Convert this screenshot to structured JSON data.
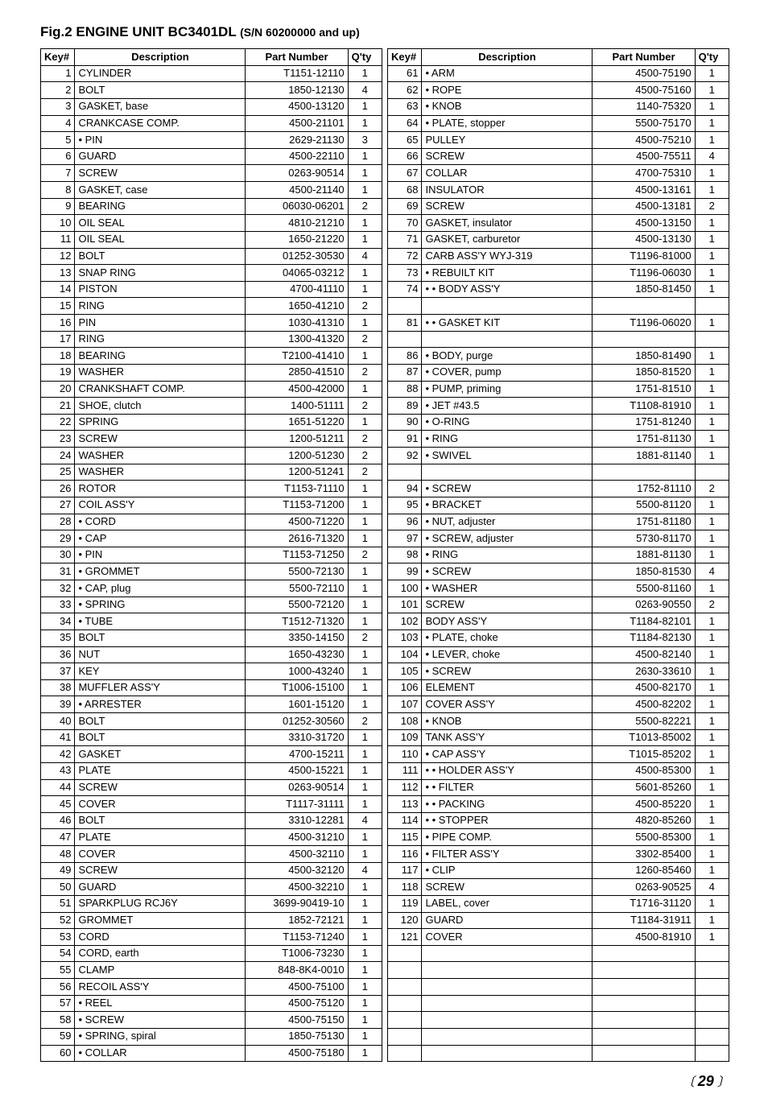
{
  "title_main": "Fig.2 ENGINE UNIT  BC3401DL ",
  "title_sn": "(S/N 60200000 and up)",
  "headers": {
    "key": "Key#",
    "desc": "Description",
    "pn": "Part Number",
    "qty": "Q'ty"
  },
  "left_rows": [
    {
      "k": "1",
      "d": "CYLINDER",
      "p": "T1151-12110",
      "q": "1"
    },
    {
      "k": "2",
      "d": "BOLT",
      "p": "1850-12130",
      "q": "4"
    },
    {
      "k": "3",
      "d": "GASKET, base",
      "p": "4500-13120",
      "q": "1"
    },
    {
      "k": "4",
      "d": "CRANKCASE COMP.",
      "p": "4500-21101",
      "q": "1"
    },
    {
      "k": "5",
      "d": "• PIN",
      "p": "2629-21130",
      "q": "3"
    },
    {
      "k": "6",
      "d": "GUARD",
      "p": "4500-22110",
      "q": "1"
    },
    {
      "k": "7",
      "d": "SCREW",
      "p": "0263-90514",
      "q": "1"
    },
    {
      "k": "8",
      "d": "GASKET, case",
      "p": "4500-21140",
      "q": "1"
    },
    {
      "k": "9",
      "d": "BEARING",
      "p": "06030-06201",
      "q": "2"
    },
    {
      "k": "10",
      "d": "OIL SEAL",
      "p": "4810-21210",
      "q": "1"
    },
    {
      "k": "11",
      "d": "OIL SEAL",
      "p": "1650-21220",
      "q": "1"
    },
    {
      "k": "12",
      "d": "BOLT",
      "p": "01252-30530",
      "q": "4"
    },
    {
      "k": "13",
      "d": "SNAP RING",
      "p": "04065-03212",
      "q": "1"
    },
    {
      "k": "14",
      "d": "PISTON",
      "p": "4700-41110",
      "q": "1"
    },
    {
      "k": "15",
      "d": "RING",
      "p": "1650-41210",
      "q": "2"
    },
    {
      "k": "16",
      "d": "PIN",
      "p": "1030-41310",
      "q": "1"
    },
    {
      "k": "17",
      "d": "RING",
      "p": "1300-41320",
      "q": "2"
    },
    {
      "k": "18",
      "d": "BEARING",
      "p": "T2100-41410",
      "q": "1"
    },
    {
      "k": "19",
      "d": "WASHER",
      "p": "2850-41510",
      "q": "2"
    },
    {
      "k": "20",
      "d": "CRANKSHAFT COMP.",
      "p": "4500-42000",
      "q": "1"
    },
    {
      "k": "21",
      "d": "SHOE, clutch",
      "p": "1400-51111",
      "q": "2"
    },
    {
      "k": "22",
      "d": "SPRING",
      "p": "1651-51220",
      "q": "1"
    },
    {
      "k": "23",
      "d": "SCREW",
      "p": "1200-51211",
      "q": "2"
    },
    {
      "k": "24",
      "d": "WASHER",
      "p": "1200-51230",
      "q": "2"
    },
    {
      "k": "25",
      "d": "WASHER",
      "p": "1200-51241",
      "q": "2"
    },
    {
      "k": "26",
      "d": "ROTOR",
      "p": "T1153-71110",
      "q": "1"
    },
    {
      "k": "27",
      "d": "COIL ASS'Y",
      "p": "T1153-71200",
      "q": "1"
    },
    {
      "k": "28",
      "d": "• CORD",
      "p": "4500-71220",
      "q": "1"
    },
    {
      "k": "29",
      "d": "• CAP",
      "p": "2616-71320",
      "q": "1"
    },
    {
      "k": "30",
      "d": "• PIN",
      "p": "T1153-71250",
      "q": "2"
    },
    {
      "k": "31",
      "d": "• GROMMET",
      "p": "5500-72130",
      "q": "1"
    },
    {
      "k": "32",
      "d": "• CAP, plug",
      "p": "5500-72110",
      "q": "1"
    },
    {
      "k": "33",
      "d": "• SPRING",
      "p": "5500-72120",
      "q": "1"
    },
    {
      "k": "34",
      "d": "• TUBE",
      "p": "T1512-71320",
      "q": "1"
    },
    {
      "k": "35",
      "d": "BOLT",
      "p": "3350-14150",
      "q": "2"
    },
    {
      "k": "36",
      "d": "NUT",
      "p": "1650-43230",
      "q": "1"
    },
    {
      "k": "37",
      "d": "KEY",
      "p": "1000-43240",
      "q": "1"
    },
    {
      "k": "38",
      "d": "MUFFLER ASS'Y",
      "p": "T1006-15100",
      "q": "1"
    },
    {
      "k": "39",
      "d": "• ARRESTER",
      "p": "1601-15120",
      "q": "1"
    },
    {
      "k": "40",
      "d": "BOLT",
      "p": "01252-30560",
      "q": "2"
    },
    {
      "k": "41",
      "d": "BOLT",
      "p": "3310-31720",
      "q": "1"
    },
    {
      "k": "42",
      "d": "GASKET",
      "p": "4700-15211",
      "q": "1"
    },
    {
      "k": "43",
      "d": "PLATE",
      "p": "4500-15221",
      "q": "1"
    },
    {
      "k": "44",
      "d": "SCREW",
      "p": "0263-90514",
      "q": "1"
    },
    {
      "k": "45",
      "d": "COVER",
      "p": "T1117-31111",
      "q": "1"
    },
    {
      "k": "46",
      "d": "BOLT",
      "p": "3310-12281",
      "q": "4"
    },
    {
      "k": "47",
      "d": "PLATE",
      "p": "4500-31210",
      "q": "1"
    },
    {
      "k": "48",
      "d": "COVER",
      "p": "4500-32110",
      "q": "1"
    },
    {
      "k": "49",
      "d": "SCREW",
      "p": "4500-32120",
      "q": "4"
    },
    {
      "k": "50",
      "d": "GUARD",
      "p": "4500-32210",
      "q": "1"
    },
    {
      "k": "51",
      "d": "SPARKPLUG RCJ6Y",
      "p": "3699-90419-10",
      "q": "1"
    },
    {
      "k": "52",
      "d": "GROMMET",
      "p": "1852-72121",
      "q": "1"
    },
    {
      "k": "53",
      "d": "CORD",
      "p": "T1153-71240",
      "q": "1"
    },
    {
      "k": "54",
      "d": "CORD, earth",
      "p": "T1006-73230",
      "q": "1"
    },
    {
      "k": "55",
      "d": "CLAMP",
      "p": "848-8K4-0010",
      "q": "1"
    },
    {
      "k": "56",
      "d": "RECOIL ASS'Y",
      "p": "4500-75100",
      "q": "1"
    },
    {
      "k": "57",
      "d": "• REEL",
      "p": "4500-75120",
      "q": "1"
    },
    {
      "k": "58",
      "d": "• SCREW",
      "p": "4500-75150",
      "q": "1"
    },
    {
      "k": "59",
      "d": "• SPRING, spiral",
      "p": "1850-75130",
      "q": "1"
    },
    {
      "k": "60",
      "d": "• COLLAR",
      "p": "4500-75180",
      "q": "1"
    }
  ],
  "right_rows": [
    {
      "k": "61",
      "d": "• ARM",
      "p": "4500-75190",
      "q": "1"
    },
    {
      "k": "62",
      "d": "• ROPE",
      "p": "4500-75160",
      "q": "1"
    },
    {
      "k": "63",
      "d": "• KNOB",
      "p": "1140-75320",
      "q": "1"
    },
    {
      "k": "64",
      "d": "• PLATE, stopper",
      "p": "5500-75170",
      "q": "1"
    },
    {
      "k": "65",
      "d": "PULLEY",
      "p": "4500-75210",
      "q": "1"
    },
    {
      "k": "66",
      "d": "SCREW",
      "p": "4500-75511",
      "q": "4"
    },
    {
      "k": "67",
      "d": "COLLAR",
      "p": "4700-75310",
      "q": "1"
    },
    {
      "k": "68",
      "d": "INSULATOR",
      "p": "4500-13161",
      "q": "1"
    },
    {
      "k": "69",
      "d": "SCREW",
      "p": "4500-13181",
      "q": "2"
    },
    {
      "k": "70",
      "d": "GASKET, insulator",
      "p": "4500-13150",
      "q": "1"
    },
    {
      "k": "71",
      "d": "GASKET, carburetor",
      "p": "4500-13130",
      "q": "1"
    },
    {
      "k": "72",
      "d": "CARB ASS'Y WYJ-319",
      "p": "T1196-81000",
      "q": "1"
    },
    {
      "k": "73",
      "d": "• REBUILT KIT",
      "p": "T1196-06030",
      "q": "1"
    },
    {
      "k": "74",
      "d": "• • BODY ASS'Y",
      "p": "1850-81450",
      "q": "1"
    },
    {
      "k": "",
      "d": "",
      "p": "",
      "q": ""
    },
    {
      "k": "81",
      "d": "• • GASKET KIT",
      "p": "T1196-06020",
      "q": "1"
    },
    {
      "k": "",
      "d": "",
      "p": "",
      "q": ""
    },
    {
      "k": "86",
      "d": "• BODY, purge",
      "p": "1850-81490",
      "q": "1"
    },
    {
      "k": "87",
      "d": "• COVER, pump",
      "p": "1850-81520",
      "q": "1"
    },
    {
      "k": "88",
      "d": "• PUMP, priming",
      "p": "1751-81510",
      "q": "1"
    },
    {
      "k": "89",
      "d": "• JET #43.5",
      "p": "T1108-81910",
      "q": "1"
    },
    {
      "k": "90",
      "d": "• O-RING",
      "p": "1751-81240",
      "q": "1"
    },
    {
      "k": "91",
      "d": "• RING",
      "p": "1751-81130",
      "q": "1"
    },
    {
      "k": "92",
      "d": "• SWIVEL",
      "p": "1881-81140",
      "q": "1"
    },
    {
      "k": "",
      "d": "",
      "p": "",
      "q": ""
    },
    {
      "k": "94",
      "d": "• SCREW",
      "p": "1752-81110",
      "q": "2"
    },
    {
      "k": "95",
      "d": "• BRACKET",
      "p": "5500-81120",
      "q": "1"
    },
    {
      "k": "96",
      "d": "• NUT, adjuster",
      "p": "1751-81180",
      "q": "1"
    },
    {
      "k": "97",
      "d": "• SCREW, adjuster",
      "p": "5730-81170",
      "q": "1"
    },
    {
      "k": "98",
      "d": "• RING",
      "p": "1881-81130",
      "q": "1"
    },
    {
      "k": "99",
      "d": "• SCREW",
      "p": "1850-81530",
      "q": "4"
    },
    {
      "k": "100",
      "d": "• WASHER",
      "p": "5500-81160",
      "q": "1"
    },
    {
      "k": "101",
      "d": "SCREW",
      "p": "0263-90550",
      "q": "2"
    },
    {
      "k": "102",
      "d": "BODY ASS'Y",
      "p": "T1184-82101",
      "q": "1"
    },
    {
      "k": "103",
      "d": "• PLATE, choke",
      "p": "T1184-82130",
      "q": "1"
    },
    {
      "k": "104",
      "d": "• LEVER, choke",
      "p": "4500-82140",
      "q": "1"
    },
    {
      "k": "105",
      "d": "• SCREW",
      "p": "2630-33610",
      "q": "1"
    },
    {
      "k": "106",
      "d": "ELEMENT",
      "p": "4500-82170",
      "q": "1"
    },
    {
      "k": "107",
      "d": "COVER ASS'Y",
      "p": "4500-82202",
      "q": "1"
    },
    {
      "k": "108",
      "d": "• KNOB",
      "p": "5500-82221",
      "q": "1"
    },
    {
      "k": "109",
      "d": "TANK ASS'Y",
      "p": "T1013-85002",
      "q": "1"
    },
    {
      "k": "110",
      "d": "• CAP ASS'Y",
      "p": "T1015-85202",
      "q": "1"
    },
    {
      "k": "111",
      "d": "• • HOLDER ASS'Y",
      "p": "4500-85300",
      "q": "1"
    },
    {
      "k": "112",
      "d": "• • FILTER",
      "p": "5601-85260",
      "q": "1"
    },
    {
      "k": "113",
      "d": "• • PACKING",
      "p": "4500-85220",
      "q": "1"
    },
    {
      "k": "114",
      "d": "• • STOPPER",
      "p": "4820-85260",
      "q": "1"
    },
    {
      "k": "115",
      "d": "• PIPE COMP.",
      "p": "5500-85300",
      "q": "1"
    },
    {
      "k": "116",
      "d": "• FILTER ASS'Y",
      "p": "3302-85400",
      "q": "1"
    },
    {
      "k": "117",
      "d": "• CLIP",
      "p": "1260-85460",
      "q": "1"
    },
    {
      "k": "118",
      "d": "SCREW",
      "p": "0263-90525",
      "q": "4"
    },
    {
      "k": "119",
      "d": "LABEL, cover",
      "p": "T1716-31120",
      "q": "1"
    },
    {
      "k": "120",
      "d": "GUARD",
      "p": "T1184-31911",
      "q": "1"
    },
    {
      "k": "121",
      "d": "COVER",
      "p": "4500-81910",
      "q": "1"
    },
    {
      "k": "",
      "d": "",
      "p": "",
      "q": ""
    },
    {
      "k": "",
      "d": "",
      "p": "",
      "q": ""
    },
    {
      "k": "",
      "d": "",
      "p": "",
      "q": ""
    },
    {
      "k": "",
      "d": "",
      "p": "",
      "q": ""
    },
    {
      "k": "",
      "d": "",
      "p": "",
      "q": ""
    },
    {
      "k": "",
      "d": "",
      "p": "",
      "q": ""
    },
    {
      "k": "",
      "d": "",
      "p": "",
      "q": ""
    }
  ],
  "page_number": "29"
}
